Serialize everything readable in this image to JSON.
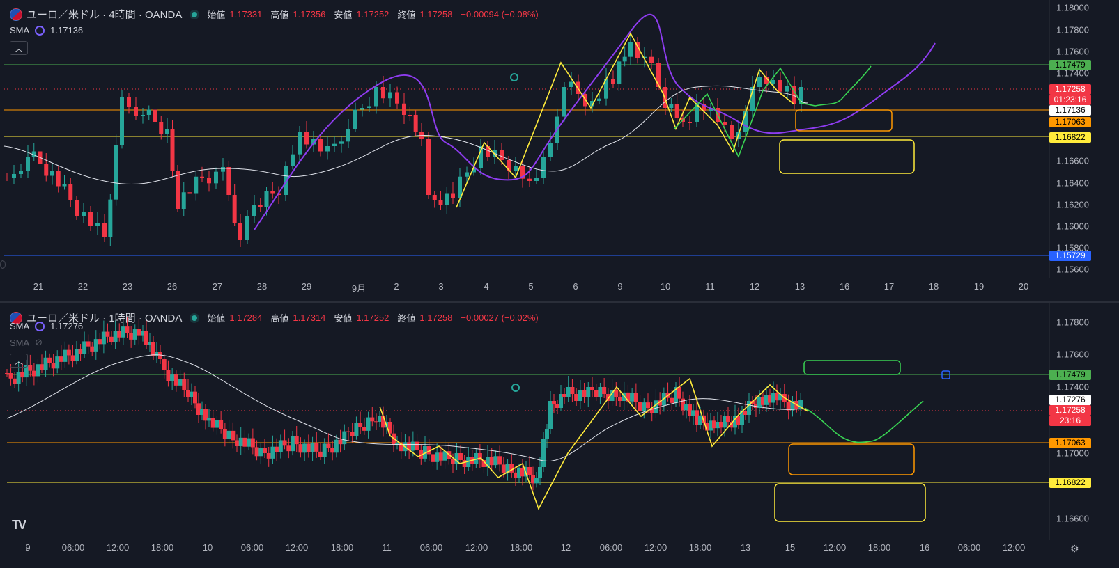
{
  "pane1": {
    "title": "ユーロ／米ドル · 4時間 · OANDA",
    "ohlc": [
      {
        "label": "始値",
        "value": "1.17331"
      },
      {
        "label": "高値",
        "value": "1.17356"
      },
      {
        "label": "安値",
        "value": "1.17252"
      },
      {
        "label": "終値",
        "value": "1.17258"
      }
    ],
    "change": "−0.00094 (−0.08%)",
    "sma_name": "SMA",
    "sma_value": "1.17136",
    "collapse_icon": "chevron-up-icon",
    "price_axis": [
      "1.18000",
      "1.17800",
      "1.17600",
      "1.17400",
      "1.16600",
      "1.16400",
      "1.16200",
      "1.16000",
      "1.15800",
      "1.15600"
    ],
    "price_tags": {
      "green_line": "1.17479",
      "last_price": "1.17258",
      "countdown": "01:23:16",
      "sma": "1.17136",
      "orange_line": "1.17063",
      "yellow_line": "1.16822",
      "blue_line": "1.15729"
    },
    "time_axis": [
      "21",
      "22",
      "23",
      "26",
      "27",
      "28",
      "29",
      "9月",
      "2",
      "3",
      "4",
      "5",
      "6",
      "9",
      "10",
      "11",
      "12",
      "13",
      "16",
      "17",
      "18",
      "19",
      "20"
    ]
  },
  "pane2": {
    "title": "ユーロ／米ドル · 1時間 · OANDA",
    "ohlc": [
      {
        "label": "始値",
        "value": "1.17284"
      },
      {
        "label": "高値",
        "value": "1.17314"
      },
      {
        "label": "安値",
        "value": "1.17252"
      },
      {
        "label": "終値",
        "value": "1.17258"
      }
    ],
    "change": "−0.00027 (−0.02%)",
    "sma_name": "SMA",
    "sma_value": "1.17276",
    "sma2_name": "SMA",
    "collapse_icon": "chevron-up-icon",
    "price_axis": [
      "1.17800",
      "1.17600",
      "1.17400",
      "1.17000",
      "1.16600"
    ],
    "price_tags": {
      "green_line": "1.17479",
      "sma": "1.17276",
      "last_price": "1.17258",
      "countdown": "23:16",
      "orange_line": "1.17063",
      "yellow_line": "1.16822"
    },
    "time_axis": [
      "9",
      "06:00",
      "12:00",
      "18:00",
      "10",
      "06:00",
      "12:00",
      "18:00",
      "11",
      "06:00",
      "12:00",
      "18:00",
      "12",
      "06:00",
      "12:00",
      "18:00",
      "13",
      "15",
      "12:00",
      "18:00",
      "16",
      "06:00",
      "12:00"
    ]
  },
  "colors": {
    "up": "#26a69a",
    "down": "#f23645",
    "green_line": "#4caf50",
    "orange_line": "#ff9800",
    "yellow_line": "#ffeb3b",
    "blue_line": "#2962ff",
    "purple": "#8e3cf0"
  },
  "footer": {
    "logo_icon": "tradingview-logo-icon",
    "settings_icon": "gear-icon"
  }
}
